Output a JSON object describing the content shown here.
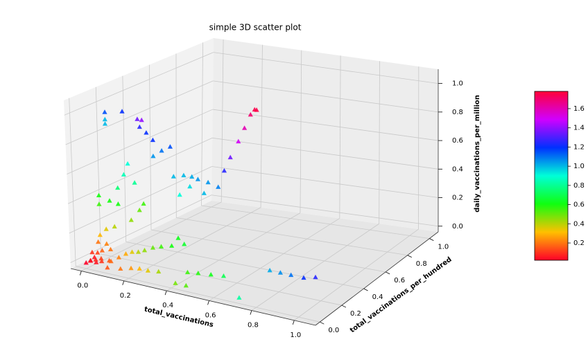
{
  "chart_data": {
    "type": "scatter3d",
    "title": "simple 3D scatter plot",
    "xlabel": "total_vaccinations",
    "ylabel": "total_vaccinations_per_hundred",
    "zlabel": "daily_vaccinations_per_million",
    "marker": "triangle",
    "grid": true,
    "xlim": [
      -0.05,
      1.1
    ],
    "ylim": [
      -0.04,
      1.08
    ],
    "zlim": [
      -0.04,
      1.1
    ],
    "xticks": [
      {
        "value": 0,
        "label": "0.0"
      },
      0.2,
      0.4,
      0.6,
      0.8,
      {
        "value": 1,
        "label": "1.0"
      }
    ],
    "yticks": [
      {
        "value": 0,
        "label": "0.0"
      },
      0.2,
      0.4,
      0.6,
      0.8,
      {
        "value": 1,
        "label": "1.0"
      }
    ],
    "zticks": [
      {
        "value": 0,
        "label": "0.0"
      },
      0.2,
      0.4,
      0.6,
      0.8,
      {
        "value": 1,
        "label": "1.0"
      }
    ],
    "colormap": [
      "#ff0028",
      "#ffc000",
      "#10ff10",
      "#00ffd8",
      "#0030ff",
      "#d000ff",
      "#ff0038"
    ],
    "clim": [
      0.02,
      1.78
    ],
    "cticks": [
      0.2,
      0.4,
      0.6,
      0.8,
      {
        "value": 1,
        "label": "1.0"
      },
      1.2,
      1.4,
      1.6
    ],
    "x": [
      0,
      0.01,
      0.02,
      0.03,
      0.01,
      0.04,
      0.05,
      0.02,
      0.06,
      0.08,
      0.03,
      0.1,
      0.07,
      0.12,
      0.04,
      0.1,
      0.15,
      0.13,
      0.2,
      0.24,
      0.28,
      0.33,
      0.45,
      0.5,
      0.56,
      0.62,
      0.42,
      0.47,
      0.72,
      0.8,
      0.85,
      0.9,
      0.96,
      1.0,
      0.1,
      0.13,
      0.16,
      0.2,
      0.24,
      0.29,
      0.35,
      0.31,
      0.05,
      0.1,
      0.05,
      0.05,
      0.2,
      0.22,
      0.21,
      0.24,
      0.27,
      0.35,
      0.31,
      0.27,
      0.15,
      0.13,
      0.18,
      0.1,
      0.01,
      0.06,
      0.01,
      0.1,
      0.22,
      0.2,
      0.16,
      0.08,
      0.04,
      0.01,
      0,
      0,
      0,
      0.05,
      0.09,
      0.12,
      0.17,
      0.22,
      0.15,
      0.08,
      0.03,
      0.25,
      0.28,
      0.32,
      0.35,
      0.38,
      0.4,
      0.41
    ],
    "y": [
      0,
      0.02,
      0,
      0.03,
      0.05,
      0.01,
      0.04,
      0.06,
      0.02,
      0.05,
      0.08,
      0.03,
      0.08,
      0.06,
      0.1,
      0,
      0.02,
      0.1,
      0.02,
      0.02,
      0.02,
      0.02,
      0.05,
      0.05,
      0.05,
      0.05,
      0,
      0,
      0,
      0.12,
      0.12,
      0.12,
      0.12,
      0.15,
      0.2,
      0.2,
      0.2,
      0.2,
      0.2,
      0.2,
      0.2,
      0.22,
      0.1,
      0.15,
      0.1,
      0.1,
      0.1,
      0.1,
      0.1,
      0.1,
      0.1,
      0.1,
      0.1,
      0.1,
      0.1,
      0.1,
      0.1,
      0.1,
      0.1,
      0.1,
      0.1,
      0.1,
      0.1,
      0.1,
      0.1,
      0.1,
      0.1,
      0.1,
      0.1,
      0.05,
      0.7,
      0.7,
      0.7,
      0.7,
      0.7,
      0.7,
      0.7,
      0.7,
      0.7,
      0.7,
      0.7,
      0.7,
      0.7,
      0.7,
      0.7,
      0.7
    ],
    "z": [
      0,
      0.01,
      0.02,
      0,
      0.02,
      0.03,
      0.01,
      0.05,
      0.04,
      0.02,
      0.06,
      0.03,
      0.08,
      0.05,
      0.1,
      0,
      0,
      0.06,
      0.02,
      0.03,
      0.03,
      0.04,
      0.06,
      0.07,
      0.08,
      0.09,
      0,
      0,
      0,
      0.15,
      0.15,
      0.15,
      0.15,
      0.15,
      0.02,
      0.03,
      0.05,
      0.08,
      0.1,
      0.12,
      0.15,
      0.17,
      1.0,
      1.0,
      0.95,
      0.92,
      1.0,
      1.0,
      0.95,
      0.92,
      0.88,
      0.86,
      0.82,
      0.77,
      0.68,
      0.6,
      0.56,
      0.5,
      0.42,
      0.4,
      0.36,
      0.39,
      0.43,
      0.38,
      0.3,
      0.23,
      0.2,
      0.15,
      0.1,
      0.05,
      0.3,
      0.32,
      0.32,
      0.31,
      0.3,
      0.28,
      0.22,
      0.25,
      0.18,
      0.4,
      0.5,
      0.62,
      0.72,
      0.82,
      0.86,
      0.86
    ],
    "c": [
      0.02,
      0.03,
      0.05,
      0.05,
      0.06,
      0.08,
      0.1,
      0.12,
      0.12,
      0.15,
      0.17,
      0.18,
      0.2,
      0.22,
      0.22,
      0.15,
      0.2,
      0.28,
      0.25,
      0.3,
      0.35,
      0.42,
      0.55,
      0.58,
      0.62,
      0.7,
      0.48,
      0.52,
      0.82,
      1.02,
      1.06,
      1.1,
      1.2,
      1.25,
      0.35,
      0.4,
      0.45,
      0.5,
      0.55,
      0.6,
      0.65,
      0.62,
      1.15,
      1.2,
      1.0,
      1.0,
      1.35,
      1.4,
      1.25,
      1.2,
      1.2,
      1.15,
      1.1,
      1.05,
      0.9,
      0.85,
      0.8,
      0.75,
      0.6,
      0.6,
      0.55,
      0.6,
      0.55,
      0.5,
      0.45,
      0.4,
      0.35,
      0.3,
      0.2,
      0.1,
      1.0,
      1.0,
      1.02,
      1.05,
      1.05,
      1.08,
      1.0,
      0.95,
      0.9,
      1.25,
      1.35,
      1.5,
      1.6,
      1.7,
      1.75,
      1.76
    ]
  }
}
